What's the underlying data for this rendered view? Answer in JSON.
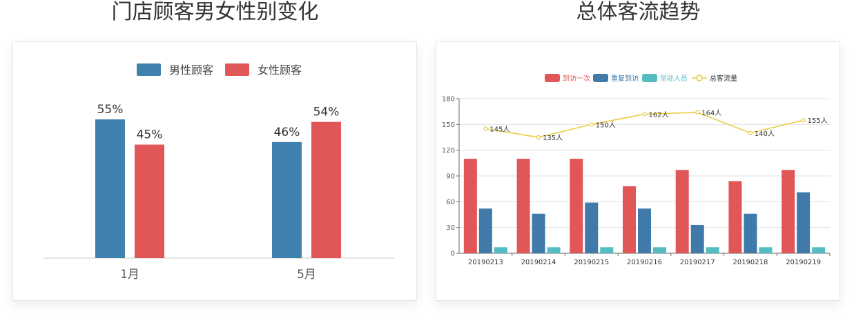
{
  "left_panel": {
    "title": "门店顾客男女性别变化"
  },
  "right_panel": {
    "title": "总体客流趋势"
  },
  "colors": {
    "male": "#3f82ae",
    "female": "#e15656",
    "first_visit": "#e15656",
    "repeat_visit": "#3f7aab",
    "resident": "#53bdc3",
    "total_line": "#e8c93a"
  },
  "chart_data": [
    {
      "type": "bar",
      "categories": [
        "1月",
        "5月"
      ],
      "series": [
        {
          "name": "男性顾客",
          "values": [
            55,
            46
          ],
          "labels": [
            "55%",
            "46%"
          ]
        },
        {
          "name": "女性顾客",
          "values": [
            45,
            54
          ],
          "labels": [
            "45%",
            "54%"
          ]
        }
      ],
      "ylim": [
        0,
        55
      ],
      "legend": "top-center",
      "grid": false
    },
    {
      "type": "bar",
      "categories": [
        "20190213",
        "20190214",
        "20190215",
        "20190216",
        "20190217",
        "20190218",
        "20190219"
      ],
      "series": [
        {
          "name": "到访一次",
          "type": "bar",
          "values": [
            110,
            110,
            110,
            78,
            97,
            84,
            97
          ]
        },
        {
          "name": "重复到访",
          "type": "bar",
          "values": [
            52,
            46,
            59,
            52,
            33,
            46,
            71
          ]
        },
        {
          "name": "常驻人员",
          "type": "bar",
          "values": [
            7,
            7,
            7,
            7,
            7,
            7,
            7
          ]
        },
        {
          "name": "总客流量",
          "type": "line",
          "values": [
            145,
            135,
            150,
            162,
            164,
            140,
            155
          ],
          "labels": [
            "145人",
            "135人",
            "150人",
            "162人",
            "164人",
            "140人",
            "155人"
          ]
        }
      ],
      "yticks": [
        "0",
        "30",
        "60",
        "90",
        "120",
        "150",
        "180"
      ],
      "ylim": [
        0,
        180
      ],
      "legend": "top-center",
      "grid": true
    }
  ]
}
